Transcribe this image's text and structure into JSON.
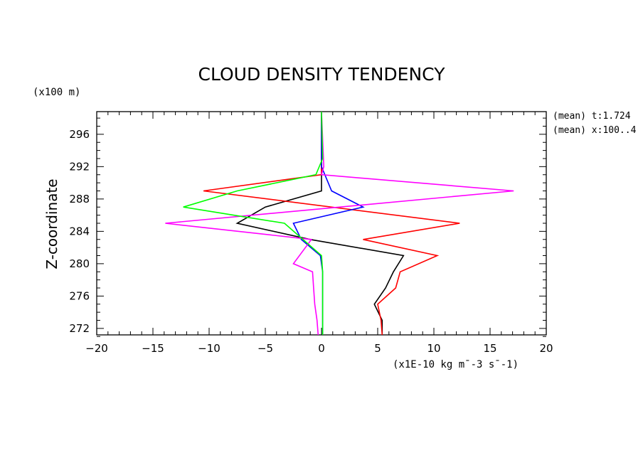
{
  "chart_data": {
    "type": "line",
    "title": "CLOUD DENSITY TENDENCY",
    "ylabel": "Z-coordinate",
    "y_unit": "(x100 m)",
    "x_unit": "(x1E-10 kg m¯-3 s¯-1)",
    "xlim": [
      -20,
      20
    ],
    "ylim": [
      271.2,
      298.8
    ],
    "x_ticks": [
      -20,
      -15,
      -10,
      -5,
      0,
      5,
      10,
      15,
      20
    ],
    "y_ticks": [
      272,
      276,
      280,
      284,
      288,
      292,
      296
    ],
    "annotations": [
      "(mean) t:1.724",
      "(mean) x:100..4"
    ],
    "grid": false,
    "series": [
      {
        "color": "#000000",
        "x": [
          5.4,
          5.4,
          4.7,
          5.7,
          6.4,
          7.3,
          -1.0,
          -7.5,
          -5.0,
          0.0,
          0.0,
          0.0
        ],
        "y": [
          271.2,
          273,
          275,
          277,
          279,
          281,
          283,
          285,
          287,
          289,
          291,
          298.8
        ]
      },
      {
        "color": "#ff0000",
        "x": [
          5.4,
          5.3,
          5.0,
          6.6,
          7.0,
          10.3,
          3.7,
          12.3,
          -10.5,
          0.0,
          0.0
        ],
        "y": [
          271.2,
          273,
          275,
          277,
          279,
          281,
          283,
          285,
          289,
          291,
          298.8
        ]
      },
      {
        "color": "#0000ff",
        "x": [
          0.1,
          0.1,
          0.1,
          0.1,
          0.1,
          -0.1,
          -1.8,
          -2.5,
          3.7,
          0.9,
          0.0,
          0.0
        ],
        "y": [
          271.2,
          273,
          275,
          277,
          279,
          281,
          283,
          285,
          287,
          289,
          292,
          298.8
        ]
      },
      {
        "color": "#ff00ff",
        "x": [
          -0.3,
          -0.4,
          -0.6,
          -0.7,
          -0.8,
          -2.5,
          -0.9,
          -13.9,
          17.1,
          0.0,
          0.2,
          0.0
        ],
        "y": [
          271.2,
          273,
          275,
          277,
          279,
          280,
          283,
          285,
          289,
          291,
          292,
          298.8
        ]
      },
      {
        "color": "#00ff00",
        "x": [
          0.1,
          0.1,
          0.1,
          0.1,
          0.1,
          0.0,
          -3.3,
          -12.3,
          -7.5,
          -0.5,
          0.1,
          0.0
        ],
        "y": [
          271.2,
          273,
          275,
          277,
          279,
          281,
          285,
          287,
          289,
          291,
          293,
          298.8
        ]
      }
    ]
  }
}
